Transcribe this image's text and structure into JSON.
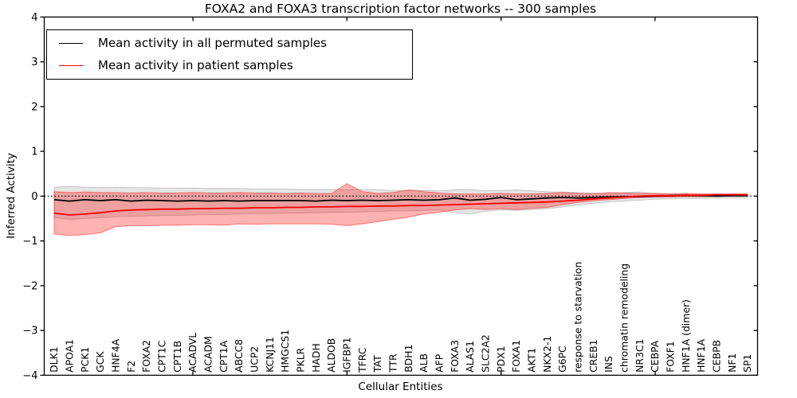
{
  "chart_data": {
    "type": "line",
    "title": "FOXA2 and FOXA3 transcription factor networks -- 300 samples",
    "xlabel": "Cellular Entities",
    "ylabel": "Inferred Activity",
    "ylim": [
      -4,
      4
    ],
    "yticks": [
      4,
      3,
      2,
      1,
      0,
      -1,
      -2,
      -3,
      -4
    ],
    "x_tick_every": 10,
    "grid": false,
    "legend_position": "upper left",
    "zero_line": {
      "y": 0,
      "style": "dotted",
      "color": "#000000"
    },
    "categories": [
      "DLK1",
      "APOA1",
      "PCK1",
      "GCK",
      "HNF4A",
      "F2",
      "FOXA2",
      "CPT1C",
      "CPT1B",
      "ACADVL",
      "ACADM",
      "CPT1A",
      "ABCC8",
      "UCP2",
      "KCNJ11",
      "HMGCS1",
      "PKLR",
      "HADH",
      "ALDOB",
      "IGFBP1",
      "TFRC",
      "TAT",
      "TTR",
      "BDH1",
      "ALB",
      "AFP",
      "FOXA3",
      "ALAS1",
      "SLC2A2",
      "PDX1",
      "FOXA1",
      "AKT1",
      "NKX2-1",
      "G6PC",
      "response to starvation",
      "CREB1",
      "INS",
      "chromatin remodeling",
      "NR3C1",
      "CEBPA",
      "FOXF1",
      "HNF1A (dimer)",
      "HNF1A",
      "CEBPB",
      "NF1",
      "SP1"
    ],
    "series": [
      {
        "name": "Mean activity in all permuted samples",
        "color": "#000000",
        "band_fill": "rgba(0,0,0,0.10)",
        "band_stroke": "rgba(0,0,0,0.18)",
        "values": [
          -0.08,
          -0.11,
          -0.08,
          -0.1,
          -0.08,
          -0.11,
          -0.09,
          -0.1,
          -0.11,
          -0.1,
          -0.11,
          -0.1,
          -0.11,
          -0.1,
          -0.1,
          -0.1,
          -0.1,
          -0.11,
          -0.09,
          -0.1,
          -0.09,
          -0.1,
          -0.09,
          -0.08,
          -0.09,
          -0.08,
          -0.04,
          -0.09,
          -0.07,
          -0.03,
          -0.08,
          -0.06,
          -0.04,
          -0.03,
          -0.04,
          -0.03,
          -0.02,
          -0.01,
          -0.01,
          0.0,
          0.01,
          0.02,
          0.01,
          0.0,
          0.01,
          0.01
        ],
        "band_upper": [
          0.2,
          0.22,
          0.2,
          0.19,
          0.2,
          0.19,
          0.19,
          0.18,
          0.18,
          0.18,
          0.17,
          0.17,
          0.17,
          0.16,
          0.16,
          0.16,
          0.15,
          0.15,
          0.15,
          0.14,
          0.14,
          0.14,
          0.13,
          0.13,
          0.13,
          0.12,
          0.14,
          0.15,
          0.12,
          0.13,
          0.14,
          0.12,
          0.1,
          0.09,
          0.08,
          0.07,
          0.06,
          0.08,
          0.09,
          0.06,
          0.05,
          0.04,
          0.04,
          0.03,
          0.03,
          0.03
        ],
        "band_lower": [
          -0.48,
          -0.52,
          -0.5,
          -0.48,
          -0.46,
          -0.45,
          -0.44,
          -0.43,
          -0.43,
          -0.42,
          -0.41,
          -0.41,
          -0.4,
          -0.39,
          -0.39,
          -0.38,
          -0.38,
          -0.37,
          -0.36,
          -0.36,
          -0.35,
          -0.34,
          -0.33,
          -0.33,
          -0.32,
          -0.31,
          -0.37,
          -0.4,
          -0.34,
          -0.31,
          -0.32,
          -0.3,
          -0.28,
          -0.24,
          -0.2,
          -0.16,
          -0.13,
          -0.11,
          -0.09,
          -0.07,
          -0.06,
          -0.05,
          -0.05,
          -0.04,
          -0.04,
          -0.04
        ]
      },
      {
        "name": "Mean activity in patient samples",
        "color": "#ff0000",
        "band_fill": "rgba(255,0,0,0.30)",
        "band_stroke": "rgba(255,0,0,0.45)",
        "values": [
          -0.38,
          -0.42,
          -0.4,
          -0.37,
          -0.33,
          -0.31,
          -0.3,
          -0.29,
          -0.29,
          -0.28,
          -0.28,
          -0.27,
          -0.27,
          -0.26,
          -0.26,
          -0.25,
          -0.25,
          -0.24,
          -0.24,
          -0.23,
          -0.23,
          -0.22,
          -0.22,
          -0.21,
          -0.21,
          -0.2,
          -0.19,
          -0.18,
          -0.17,
          -0.16,
          -0.15,
          -0.14,
          -0.13,
          -0.11,
          -0.09,
          -0.06,
          -0.04,
          -0.02,
          0.0,
          0.01,
          0.01,
          0.02,
          0.02,
          0.03,
          0.03,
          0.03
        ],
        "band_upper": [
          0.1,
          0.08,
          0.09,
          0.08,
          0.08,
          0.07,
          0.08,
          0.07,
          0.07,
          0.08,
          0.07,
          0.07,
          0.08,
          0.07,
          0.07,
          0.06,
          0.07,
          0.06,
          0.06,
          0.28,
          0.1,
          0.06,
          0.08,
          0.14,
          0.1,
          0.07,
          0.05,
          0.05,
          0.05,
          0.06,
          0.05,
          0.05,
          0.06,
          0.08,
          0.06,
          0.05,
          0.08,
          0.07,
          0.06,
          0.06,
          0.05,
          0.06,
          0.05,
          0.05,
          0.05,
          0.05
        ],
        "band_lower": [
          -0.85,
          -0.88,
          -0.86,
          -0.82,
          -0.68,
          -0.66,
          -0.66,
          -0.65,
          -0.65,
          -0.64,
          -0.64,
          -0.65,
          -0.62,
          -0.63,
          -0.62,
          -0.62,
          -0.62,
          -0.62,
          -0.63,
          -0.66,
          -0.62,
          -0.57,
          -0.52,
          -0.47,
          -0.4,
          -0.36,
          -0.31,
          -0.28,
          -0.3,
          -0.28,
          -0.3,
          -0.27,
          -0.25,
          -0.19,
          -0.14,
          -0.1,
          -0.08,
          -0.05,
          -0.03,
          -0.02,
          -0.02,
          -0.01,
          -0.01,
          0.0,
          0.0,
          0.0
        ]
      }
    ]
  }
}
